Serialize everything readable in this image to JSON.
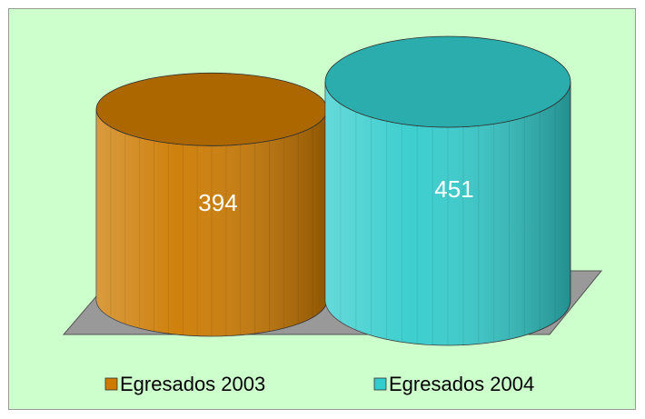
{
  "chart_data": {
    "type": "cylinder",
    "series": [
      {
        "name": "Egresados 2003",
        "color": "#cc7a00",
        "values": [
          394
        ]
      },
      {
        "name": "Egresados 2004",
        "color": "#33cccc",
        "values": [
          451
        ]
      }
    ]
  }
}
